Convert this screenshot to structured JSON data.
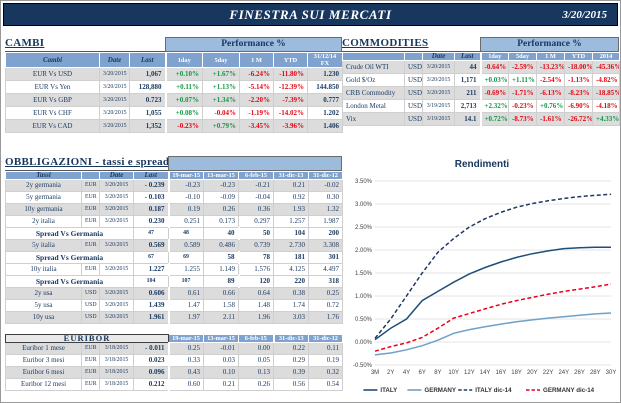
{
  "colors": {
    "navy": "#17375E",
    "header_blue": "#7FA3CE",
    "band_blue": "#9DBBDD",
    "stripe": "#DCDCDC",
    "positive": "#159645",
    "negative": "#E30613"
  },
  "header": {
    "title": "FINESTRA SUI MERCATI",
    "date": "3/20/2015"
  },
  "cambi": {
    "title": "CAMBI",
    "perf_header": "Performance  %",
    "columns": [
      "Cambi",
      "Date",
      "Last",
      "1day",
      "5day",
      "1 M",
      "YTD",
      "31/12/14\nFX"
    ],
    "rows": [
      [
        "EUR Vs USD",
        "3/20/2015",
        "1,067",
        "+0.10%",
        "+1.67%",
        "-6.24%",
        "-11.80%",
        "1.230"
      ],
      [
        "EUR Vs Yen",
        "3/20/2015",
        "128,880",
        "+0.11%",
        "+1.13%",
        "-5.14%",
        "-12.39%",
        "144.850"
      ],
      [
        "EUR Vs GBP",
        "3/20/2015",
        "0.723",
        "+0.07%",
        "+1.34%",
        "-2.20%",
        "-7.39%",
        "0.777"
      ],
      [
        "EUR Vs CHF",
        "3/20/2015",
        "1,055",
        "+0.08%",
        "-0.04%",
        "-1.19%",
        "-14.02%",
        "1.202"
      ],
      [
        "EUR Vs CAD",
        "3/20/2015",
        "1,352",
        "-0.23%",
        "+0.79%",
        "-3.45%",
        "-3.96%",
        "1.406"
      ]
    ]
  },
  "commodities": {
    "title": "COMMODITIES",
    "perf_header": "Performance  %",
    "columns": [
      "",
      "",
      "Date",
      "Last",
      "1day",
      "5day",
      "1 M",
      "YTD",
      "2014"
    ],
    "rows": [
      [
        "Crude Oil WTI",
        "USD",
        "3/20/2015",
        "44",
        "-0.64%",
        "-2.59%",
        "-13.23%",
        "-18.00%",
        "-45.36%"
      ],
      [
        "Gold $/Oz",
        "USD",
        "3/20/2015",
        "1,171",
        "+0.03%",
        "+1.11%",
        "-2.54%",
        "-1.13%",
        "-4.82%"
      ],
      [
        "CRB Commodity",
        "USD",
        "3/20/2015",
        "211",
        "-0.69%",
        "-1.71%",
        "-6.13%",
        "-8.23%",
        "-18.85%"
      ],
      [
        "London Metal",
        "USD",
        "3/19/2015",
        "2,713",
        "+2.32%",
        "-0.23%",
        "+0.76%",
        "-6.90%",
        "-4.18%"
      ],
      [
        "Vix",
        "USD",
        "3/19/2015",
        "14.1",
        "+0.72%",
        "-8.73%",
        "-1.61%",
        "-26.72%",
        "+4.33%"
      ]
    ]
  },
  "obbligazioni": {
    "title": "OBBLIGAZIONI - tassi e spread",
    "columns": [
      "Tassi",
      "",
      "Date",
      "Last",
      "19-mar-15",
      "13-mar-15",
      "6-feb-15",
      "31-dic-13",
      "31-dic-12"
    ],
    "rows": [
      {
        "cells": [
          "2y germania",
          "EUR",
          "3/20/2015",
          "- 0.239",
          "-0.23",
          "-0.23",
          "-0.21",
          "0.21",
          "-0.02"
        ]
      },
      {
        "cells": [
          "5y germania",
          "EUR",
          "3/20/2015",
          "- 0.103",
          "-0.10",
          "-0.09",
          "-0.04",
          "0.92",
          "0.30"
        ]
      },
      {
        "cells": [
          "10y germania",
          "EUR",
          "3/20/2015",
          "0.187",
          "0.19",
          "0.26",
          "0.36",
          "1.93",
          "1.32"
        ]
      },
      {
        "cells": [
          "2y italia",
          "EUR",
          "3/20/2015",
          "0.230",
          "0.251",
          "0.173",
          "0.297",
          "1.257",
          "1.987"
        ]
      },
      {
        "spread": true,
        "label": "Spread Vs Germania",
        "values": [
          "47",
          "48",
          "40",
          "50",
          "104",
          "200"
        ]
      },
      {
        "cells": [
          "5y italia",
          "EUR",
          "3/20/2015",
          "0.569",
          "0.589",
          "0.486",
          "0.739",
          "2.730",
          "3.308"
        ]
      },
      {
        "spread": true,
        "label": "Spread Vs Germania",
        "values": [
          "67",
          "69",
          "58",
          "78",
          "181",
          "301"
        ]
      },
      {
        "cells": [
          "10y italia",
          "EUR",
          "3/20/2015",
          "1.227",
          "1.255",
          "1.149",
          "1.576",
          "4.125",
          "4.497"
        ]
      },
      {
        "spread": true,
        "label": "Spread Vs Germania",
        "values": [
          "104",
          "107",
          "89",
          "120",
          "220",
          "318"
        ]
      },
      {
        "cells": [
          "2y usa",
          "USD",
          "3/20/2015",
          "0.606",
          "0.61",
          "0.66",
          "0.64",
          "0.38",
          "0.25"
        ]
      },
      {
        "cells": [
          "5y usa",
          "USD",
          "3/20/2015",
          "1.439",
          "1.47",
          "1.58",
          "1.48",
          "1.74",
          "0.72"
        ]
      },
      {
        "cells": [
          "10y usa",
          "USD",
          "3/20/2015",
          "1.961",
          "1.97",
          "2.11",
          "1.96",
          "3.03",
          "1.76"
        ]
      }
    ]
  },
  "euribor": {
    "title": "EURIBOR",
    "columns": [
      "19-mar-15",
      "13-mar-15",
      "6-feb-15",
      "31-dic-13",
      "31-dic-12"
    ],
    "rows": [
      [
        "Euribor 1 mese",
        "EUR",
        "3/18/2015",
        "- 0.011",
        "0.25",
        "-0.01",
        "0.00",
        "0.22",
        "0.11"
      ],
      [
        "Euribor 3 mesi",
        "EUR",
        "3/18/2015",
        "0.023",
        "0.33",
        "0.03",
        "0.05",
        "0.29",
        "0.19"
      ],
      [
        "Euribor 6 mesi",
        "EUR",
        "3/18/2015",
        "0.096",
        "0.43",
        "0.10",
        "0.13",
        "0.39",
        "0.32"
      ],
      [
        "Euribor 12 mesi",
        "EUR",
        "3/18/2015",
        "0.212",
        "0.60",
        "0.21",
        "0.26",
        "0.56",
        "0.54"
      ]
    ]
  },
  "chart_data": {
    "type": "line",
    "title": "Rendimenti",
    "x": [
      "3M",
      "2Y",
      "4Y",
      "6Y",
      "8Y",
      "10Y",
      "12Y",
      "14Y",
      "16Y",
      "18Y",
      "20Y",
      "22Y",
      "24Y",
      "26Y",
      "28Y",
      "30Y"
    ],
    "ylim": [
      -0.5,
      3.5
    ],
    "ytick_step": 0.5,
    "grid": true,
    "legend_position": "bottom",
    "series": [
      {
        "name": "ITALY",
        "color": "#1F4E79",
        "dash": "solid",
        "values": [
          0.05,
          0.3,
          0.5,
          0.9,
          1.1,
          1.3,
          1.48,
          1.62,
          1.74,
          1.84,
          1.92,
          1.98,
          2.03,
          2.05,
          2.06,
          2.06
        ]
      },
      {
        "name": "GERMANY",
        "color": "#6FA0C8",
        "dash": "solid",
        "values": [
          -0.28,
          -0.24,
          -0.17,
          -0.08,
          0.04,
          0.19,
          0.27,
          0.33,
          0.39,
          0.44,
          0.48,
          0.52,
          0.55,
          0.58,
          0.61,
          0.63
        ]
      },
      {
        "name": "ITALY dic-14",
        "color": "#1F3864",
        "dash": "dashed",
        "values": [
          0.08,
          0.5,
          1.0,
          1.5,
          1.95,
          2.25,
          2.5,
          2.68,
          2.82,
          2.93,
          3.01,
          3.07,
          3.12,
          3.16,
          3.19,
          3.21
        ]
      },
      {
        "name": "GERMANY dic-14",
        "color": "#E8001C",
        "dash": "dashed",
        "values": [
          -0.2,
          -0.1,
          -0.02,
          0.1,
          0.3,
          0.52,
          0.62,
          0.72,
          0.82,
          0.9,
          0.97,
          1.04,
          1.1,
          1.15,
          1.2,
          1.26
        ]
      }
    ]
  }
}
